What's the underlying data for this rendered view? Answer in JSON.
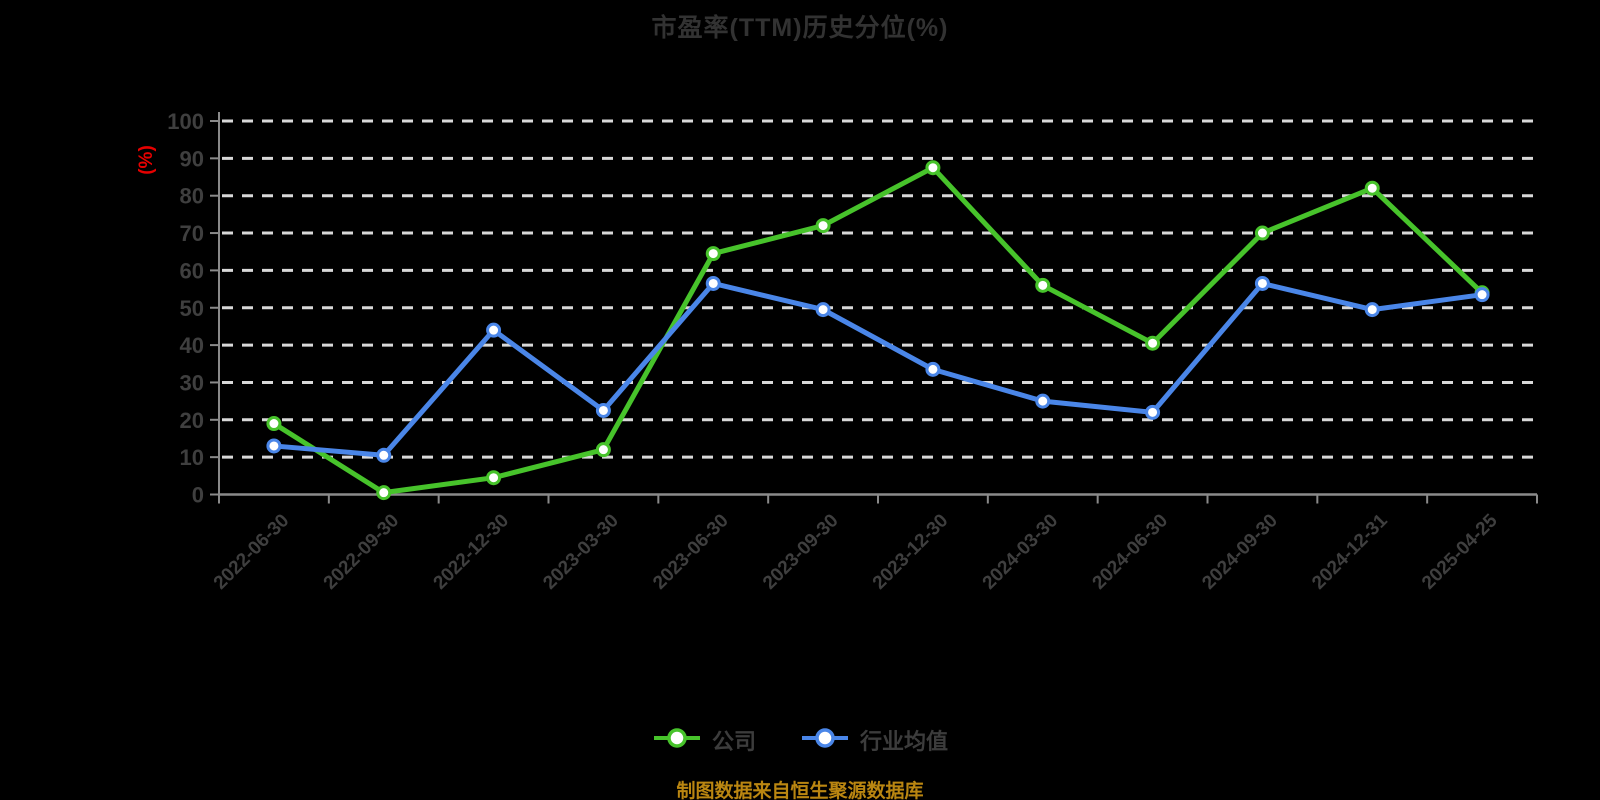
{
  "title": "市盈率(TTM)历史分位(%)",
  "footer": "制图数据来自恒生聚源数据库",
  "colors": {
    "company_green": "#47c32b",
    "industry_blue": "#4a86e8",
    "y_unit_red": "#e60000",
    "footer_orange": "#ba8611",
    "gridline": "#d8d8d8",
    "axis": "#8a8a8a",
    "tick_text": "#3f3f3f",
    "background": "#000000"
  },
  "chart_data": {
    "type": "line",
    "title": "市盈率(TTM)历史分位(%)",
    "ylabel": "(%)",
    "xlabel": "",
    "ylim": [
      0,
      100
    ],
    "ytick_interval": 10,
    "grid": "horizontal dashed",
    "legend_position": "bottom",
    "categories": [
      "2022-06-30",
      "2022-09-30",
      "2022-12-30",
      "2023-03-30",
      "2023-06-30",
      "2023-09-30",
      "2023-12-30",
      "2024-03-30",
      "2024-06-30",
      "2024-09-30",
      "2024-12-31",
      "2025-04-25"
    ],
    "series": [
      {
        "name": "公司",
        "color": "#47c32b",
        "marker": "circle-white-fill",
        "values": [
          19,
          0.5,
          4.5,
          12,
          64.5,
          72,
          87.5,
          56,
          40.5,
          70,
          82,
          54
        ]
      },
      {
        "name": "行业均值",
        "color": "#4a86e8",
        "marker": "circle-white-fill",
        "values": [
          13,
          10.5,
          44,
          22.5,
          56.5,
          49.5,
          33.5,
          25,
          22,
          56.5,
          49.5,
          53.5
        ]
      }
    ]
  }
}
